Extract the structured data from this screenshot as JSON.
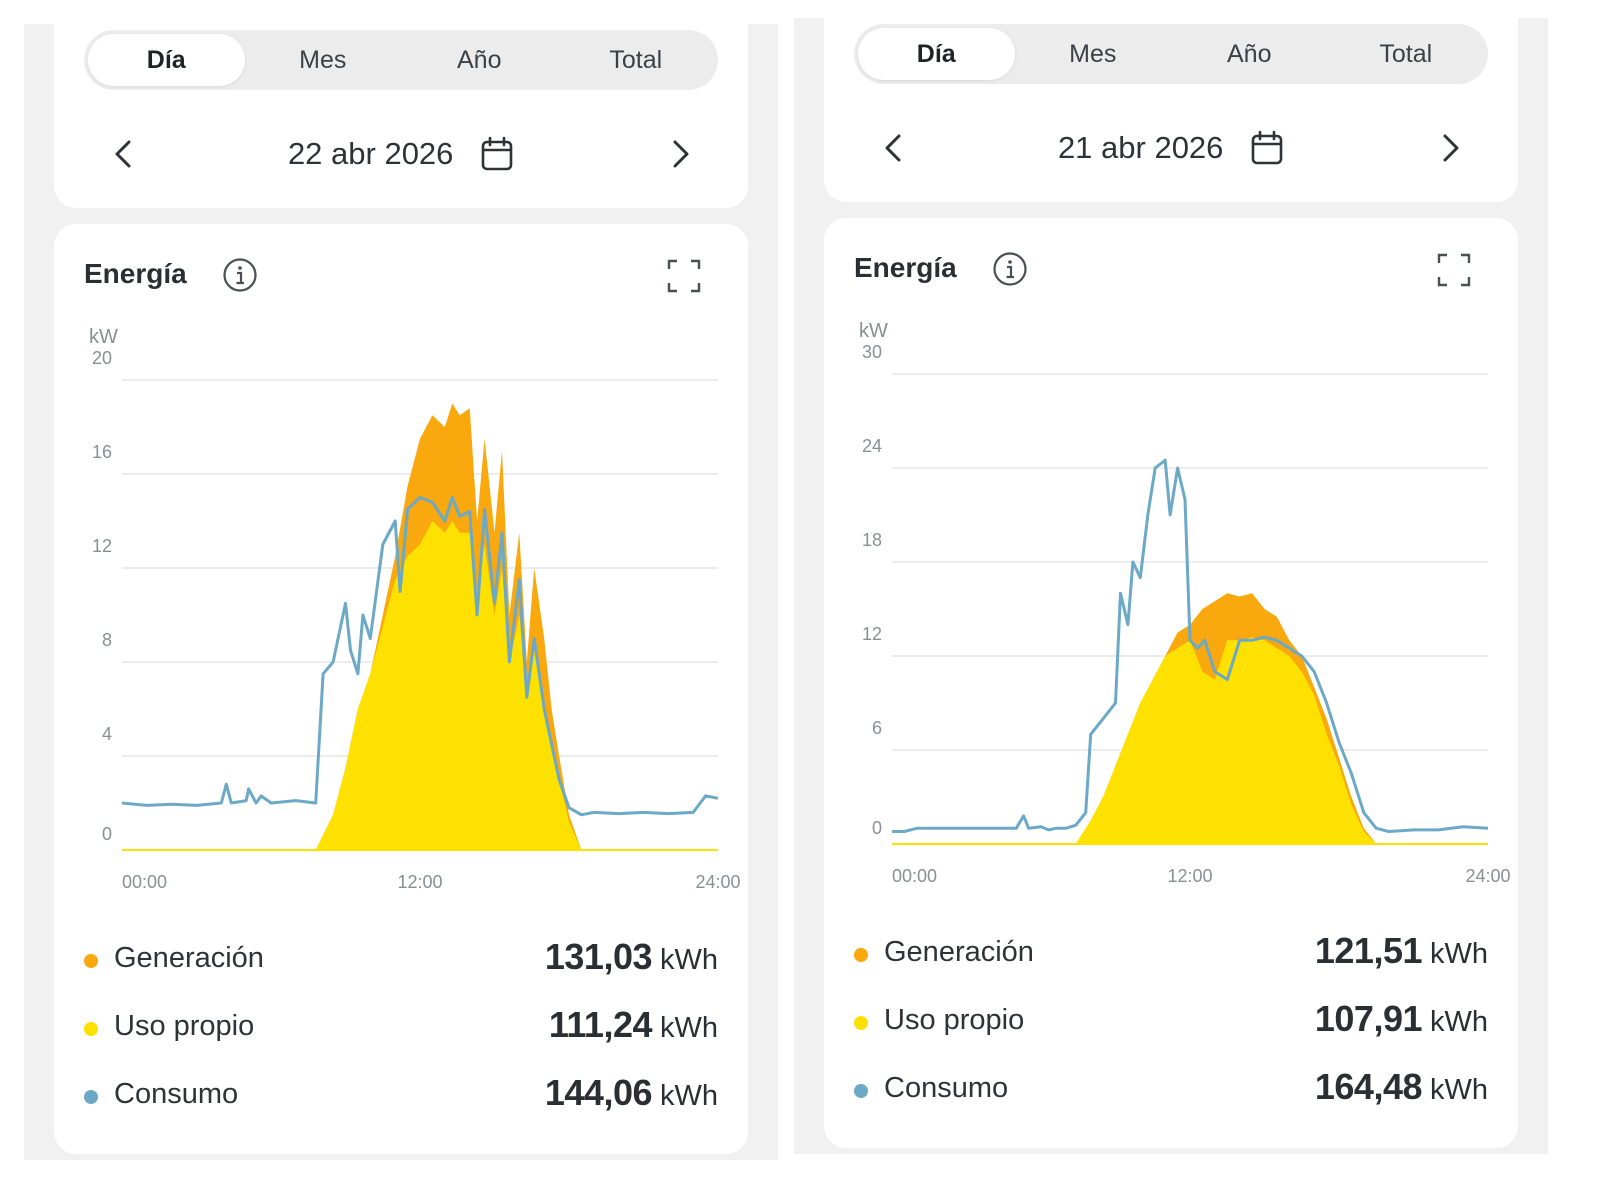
{
  "colors": {
    "generation": "#F9A80E",
    "self_use": "#FFE100",
    "consumption": "#6CA9C6",
    "grid": "#e6e6e6",
    "axis_text": "#8a8f94"
  },
  "icons": [
    "chevron-left-icon",
    "chevron-right-icon",
    "calendar-icon",
    "info-icon",
    "expand-icon"
  ],
  "panels": [
    {
      "tabs": [
        "Día",
        "Mes",
        "Año",
        "Total"
      ],
      "active_tab": "Día",
      "date": "22 abr 2026",
      "card_title": "Energía",
      "unit": "kW",
      "legend": [
        {
          "name": "Generación",
          "value": "131,03",
          "unit": "kWh"
        },
        {
          "name": "Uso propio",
          "value": "111,24",
          "unit": "kWh"
        },
        {
          "name": "Consumo",
          "value": "144,06",
          "unit": "kWh"
        }
      ],
      "chart_data": {
        "type": "area",
        "xlabel": "",
        "ylabel": "kW",
        "ylim": [
          0,
          20
        ],
        "y_ticks": [
          "0",
          "4",
          "8",
          "12",
          "16",
          "20"
        ],
        "x_ticks": [
          "00:00",
          "12:00",
          "24:00"
        ],
        "xlim": [
          0,
          24
        ],
        "grid": true,
        "series": [
          {
            "name": "Generación",
            "type": "area",
            "x": [
              0,
              7.8,
              8.5,
              9,
              9.5,
              10,
              10.5,
              11,
              11.5,
              12,
              12.5,
              13,
              13.3,
              13.6,
              14,
              14.3,
              14.6,
              15,
              15.3,
              15.6,
              16,
              16.3,
              16.6,
              17,
              17.3,
              17.6,
              18,
              18.5,
              19,
              20.5,
              24
            ],
            "y": [
              0,
              0,
              1.5,
              3.5,
              6,
              7.5,
              10,
              12.5,
              15.5,
              17.5,
              18.5,
              18,
              19,
              18.5,
              18.8,
              14,
              17.5,
              13.5,
              17,
              10,
              13.5,
              8,
              12,
              9,
              6,
              4,
              1.5,
              0,
              0,
              0,
              0
            ]
          },
          {
            "name": "Uso propio",
            "type": "area",
            "x": [
              0,
              7.8,
              8.5,
              9,
              9.5,
              10,
              10.5,
              11,
              11.5,
              12,
              12.5,
              13,
              13.3,
              13.6,
              14,
              14.3,
              14.6,
              15,
              15.3,
              15.6,
              16,
              16.3,
              16.6,
              17,
              17.3,
              17.6,
              18,
              18.5,
              19,
              20.5,
              24
            ],
            "y": [
              0,
              0,
              1.5,
              3.5,
              6,
              7.5,
              9.5,
              11.5,
              12.5,
              13,
              14,
              13.5,
              14,
              13.5,
              13.5,
              11,
              13,
              10,
              12,
              8,
              10,
              6.5,
              8.5,
              6,
              4.5,
              3,
              1.2,
              0,
              0,
              0,
              0
            ]
          },
          {
            "name": "Consumo",
            "type": "line",
            "x": [
              0,
              1,
              2,
              3,
              4,
              4.2,
              4.4,
              5,
              5.1,
              5.4,
              5.6,
              6,
              7,
              7.8,
              8.1,
              8.5,
              9,
              9.2,
              9.5,
              9.7,
              10,
              10.5,
              11,
              11.2,
              11.5,
              12,
              12.5,
              13,
              13.3,
              13.6,
              14,
              14.3,
              14.6,
              15,
              15.3,
              15.6,
              16,
              16.3,
              16.6,
              17,
              17.3,
              17.6,
              18,
              18.5,
              19,
              20,
              21,
              22,
              23,
              23.5,
              24
            ],
            "y": [
              2,
              1.9,
              1.95,
              1.9,
              2,
              2.8,
              2.0,
              2.1,
              2.6,
              2.0,
              2.3,
              2.0,
              2.1,
              2.0,
              7.5,
              8,
              10.5,
              8.5,
              7.5,
              10,
              9,
              13,
              14,
              11,
              14.5,
              15,
              14.8,
              14,
              15,
              14.2,
              14.4,
              10,
              14.5,
              10.5,
              13.5,
              8,
              11.5,
              6.5,
              9,
              6,
              4.5,
              3,
              1.8,
              1.5,
              1.6,
              1.55,
              1.6,
              1.55,
              1.6,
              2.3,
              2.2
            ]
          }
        ]
      }
    },
    {
      "tabs": [
        "Día",
        "Mes",
        "Año",
        "Total"
      ],
      "active_tab": "Día",
      "date": "21 abr 2026",
      "card_title": "Energía",
      "unit": "kW",
      "legend": [
        {
          "name": "Generación",
          "value": "121,51",
          "unit": "kWh"
        },
        {
          "name": "Uso propio",
          "value": "107,91",
          "unit": "kWh"
        },
        {
          "name": "Consumo",
          "value": "164,48",
          "unit": "kWh"
        }
      ],
      "chart_data": {
        "type": "area",
        "xlabel": "",
        "ylabel": "kW",
        "ylim": [
          0,
          30
        ],
        "y_ticks": [
          "0",
          "6",
          "12",
          "18",
          "24",
          "30"
        ],
        "x_ticks": [
          "00:00",
          "12:00",
          "24:00"
        ],
        "xlim": [
          0,
          24
        ],
        "grid": true,
        "series": [
          {
            "name": "Generación",
            "type": "area",
            "x": [
              0,
              7.4,
              8,
              8.5,
              9,
              9.5,
              10,
              10.5,
              11,
              11.5,
              12,
              12.5,
              13,
              13.5,
              14,
              14.5,
              15,
              15.5,
              16,
              16.5,
              17,
              17.5,
              18,
              18.5,
              19,
              19.5,
              20,
              24
            ],
            "y": [
              0,
              0,
              1.5,
              3,
              5,
              7,
              9,
              10.5,
              12,
              13.5,
              14,
              15,
              15.5,
              16,
              15.8,
              16,
              15,
              14.5,
              13,
              12,
              10,
              8,
              5.5,
              3,
              1,
              0,
              0,
              0
            ]
          },
          {
            "name": "Uso propio",
            "type": "area",
            "x": [
              0,
              7.4,
              8,
              8.5,
              9,
              9.5,
              10,
              10.5,
              11,
              11.5,
              12,
              12.5,
              13,
              13.5,
              14,
              14.5,
              15,
              15.5,
              16,
              16.5,
              17,
              17.5,
              18,
              18.5,
              19,
              19.5,
              20,
              24
            ],
            "y": [
              0,
              0,
              1.5,
              3,
              5,
              7,
              9,
              10.5,
              12,
              12.5,
              13,
              11,
              10.5,
              13,
              13,
              13.2,
              13,
              12.5,
              12,
              11,
              9.5,
              7,
              5,
              2.5,
              0.8,
              0,
              0,
              0
            ]
          },
          {
            "name": "Consumo",
            "type": "line",
            "x": [
              0,
              0.5,
              1,
              2,
              3,
              4,
              5,
              5.3,
              5.5,
              6,
              6.3,
              6.6,
              7,
              7.4,
              7.8,
              8,
              8.5,
              9,
              9.2,
              9.5,
              9.7,
              10,
              10.3,
              10.6,
              11,
              11.2,
              11.5,
              11.8,
              12,
              12.3,
              12.6,
              13,
              13.5,
              14,
              14.5,
              15,
              15.5,
              16,
              16.5,
              17,
              17.5,
              18,
              18.5,
              19,
              19.5,
              20,
              21,
              22,
              23,
              24
            ],
            "y": [
              0.8,
              0.8,
              1.0,
              1.0,
              1.0,
              1.0,
              1.0,
              1.8,
              1.0,
              1.1,
              0.9,
              1.0,
              1.0,
              1.2,
              2.0,
              7,
              8,
              9,
              16,
              14,
              18,
              17,
              21,
              24,
              24.5,
              21,
              24,
              22,
              13,
              12.5,
              13,
              11,
              10.5,
              13,
              13,
              13.2,
              13,
              12.5,
              12,
              11,
              9,
              6.5,
              4.5,
              2,
              1,
              0.8,
              0.9,
              0.9,
              1.1,
              1.0
            ]
          }
        ]
      }
    }
  ]
}
